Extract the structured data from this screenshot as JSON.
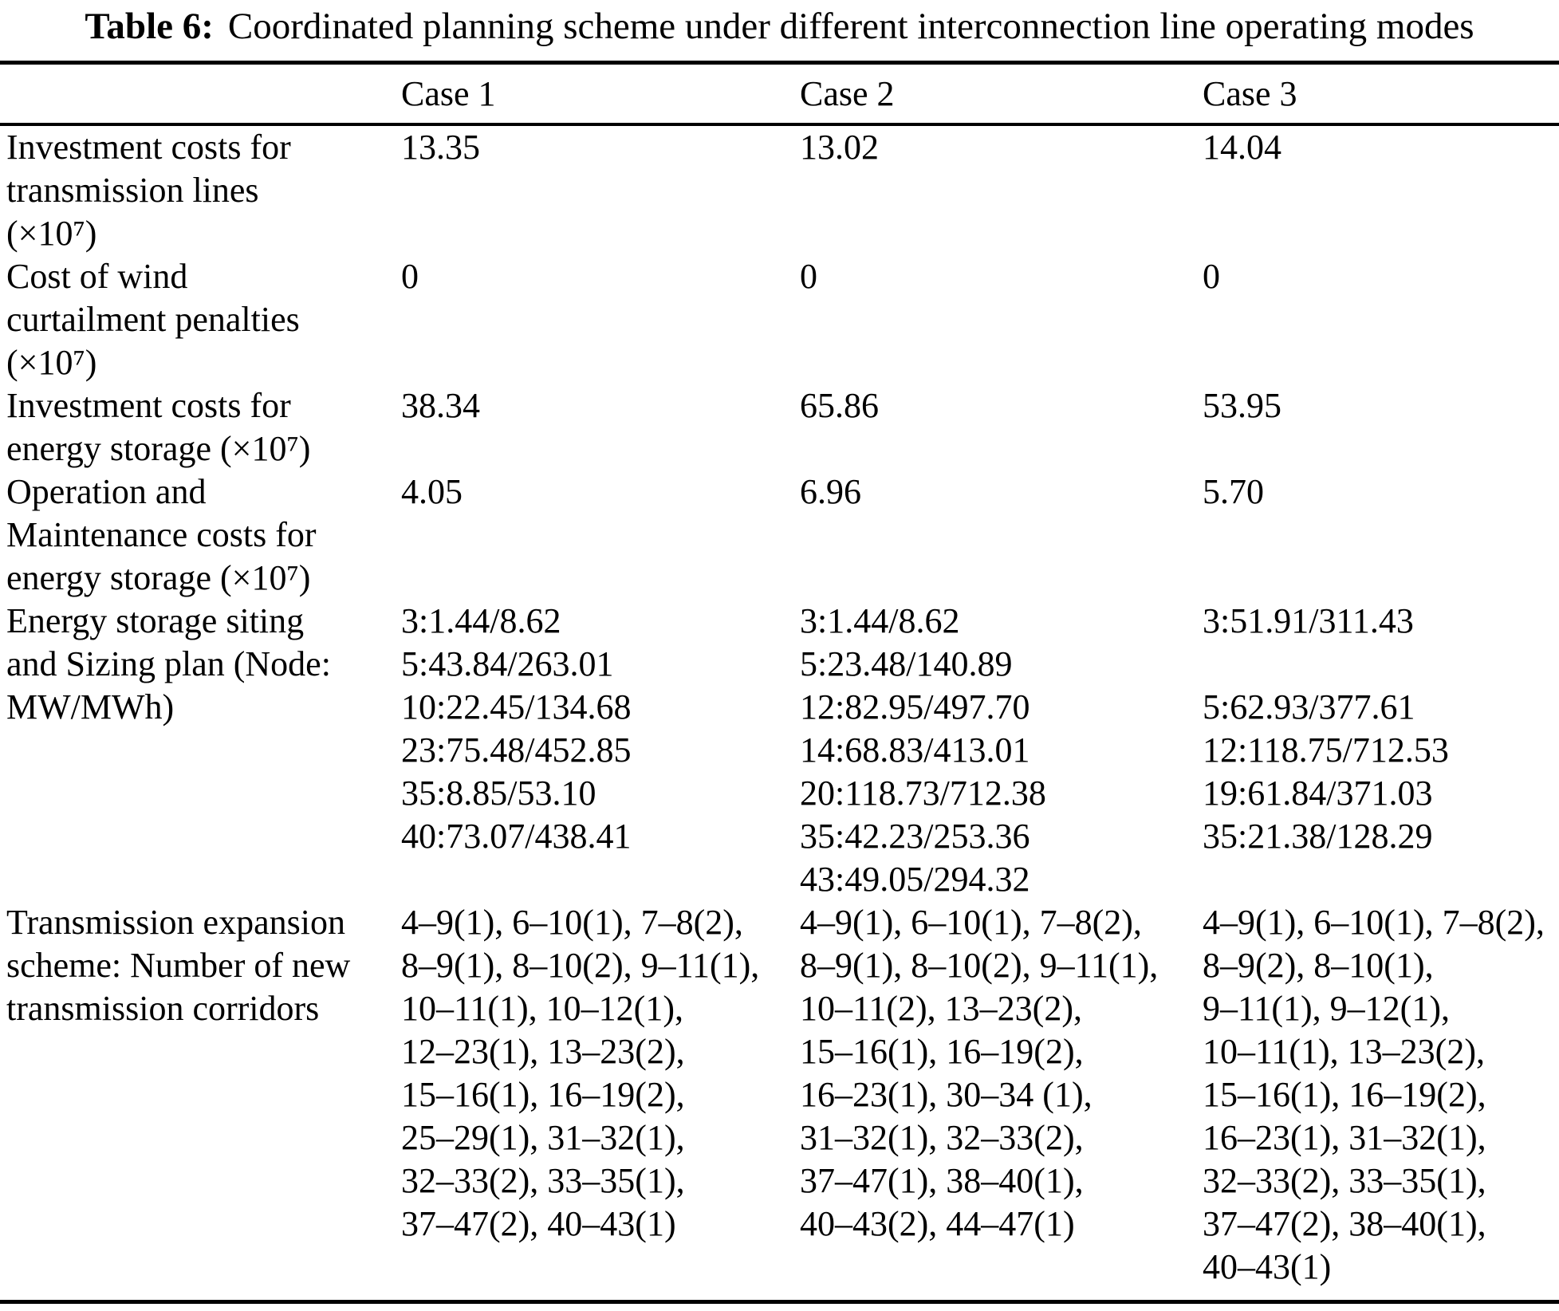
{
  "title": {
    "prefix": "Table 6:",
    "text": "Coordinated planning scheme under different interconnection line operating modes"
  },
  "table": {
    "header": {
      "col0": "",
      "col1": "Case 1",
      "col2": "Case 2",
      "col3": "Case 3"
    },
    "rows": [
      {
        "label_lines": [
          "Investment costs for",
          "transmission lines",
          "(×10⁷)"
        ],
        "case1_lines": [
          "13.35"
        ],
        "case2_lines": [
          "13.02"
        ],
        "case3_lines": [
          "14.04"
        ]
      },
      {
        "label_lines": [
          "Cost of wind",
          "curtailment penalties",
          "(×10⁷)"
        ],
        "case1_lines": [
          "0"
        ],
        "case2_lines": [
          "0"
        ],
        "case3_lines": [
          "0"
        ]
      },
      {
        "label_lines": [
          "Investment costs for",
          "energy storage (×10⁷)"
        ],
        "case1_lines": [
          "38.34"
        ],
        "case2_lines": [
          "65.86"
        ],
        "case3_lines": [
          "53.95"
        ]
      },
      {
        "label_lines": [
          "Operation and",
          "Maintenance costs for",
          "energy storage (×10⁷)"
        ],
        "case1_lines": [
          "4.05"
        ],
        "case2_lines": [
          "6.96"
        ],
        "case3_lines": [
          "5.70"
        ]
      },
      {
        "label_lines": [
          "Energy storage siting",
          "and Sizing plan (Node:",
          "MW/MWh)"
        ],
        "case1_lines": [
          "3:1.44/8.62",
          "5:43.84/263.01",
          "10:22.45/134.68",
          "23:75.48/452.85",
          "35:8.85/53.10",
          "40:73.07/438.41"
        ],
        "case2_lines": [
          "3:1.44/8.62",
          "5:23.48/140.89",
          "12:82.95/497.70",
          "14:68.83/413.01",
          "20:118.73/712.38",
          "35:42.23/253.36",
          "43:49.05/294.32"
        ],
        "case3_lines": [
          "3:51.91/311.43",
          "",
          "5:62.93/377.61",
          "12:118.75/712.53",
          "19:61.84/371.03",
          "35:21.38/128.29"
        ]
      },
      {
        "label_lines": [
          "Transmission expansion",
          "scheme: Number of new",
          "transmission corridors"
        ],
        "case1_lines": [
          "4–9(1), 6–10(1), 7–8(2),",
          "8–9(1), 8–10(2), 9–11(1),",
          "10–11(1), 10–12(1),",
          "12–23(1), 13–23(2),",
          "15–16(1), 16–19(2),",
          "25–29(1), 31–32(1),",
          "32–33(2), 33–35(1),",
          "37–47(2), 40–43(1)"
        ],
        "case2_lines": [
          "4–9(1), 6–10(1), 7–8(2),",
          "8–9(1), 8–10(2), 9–11(1),",
          "10–11(2), 13–23(2),",
          "15–16(1), 16–19(2),",
          "16–23(1), 30–34 (1),",
          "31–32(1), 32–33(2),",
          "37–47(1), 38–40(1),",
          "40–43(2), 44–47(1)"
        ],
        "case3_lines": [
          "4–9(1), 6–10(1), 7–8(2),",
          "8–9(2), 8–10(1),",
          "9–11(1), 9–12(1),",
          "10–11(1), 13–23(2),",
          "15–16(1), 16–19(2),",
          "16–23(1), 31–32(1),",
          "32–33(2), 33–35(1),",
          "37–47(2), 38–40(1),",
          "40–43(1)"
        ]
      }
    ]
  }
}
